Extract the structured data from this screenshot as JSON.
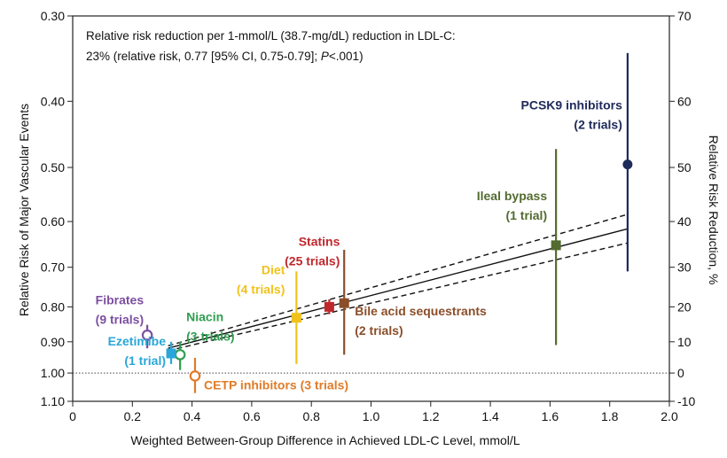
{
  "chart_data": {
    "type": "scatter",
    "title": "",
    "annotation_lines": [
      "Relative risk reduction per 1-mmol/L (38.7-mg/dL) reduction in LDL-C:",
      "23% (relative risk, 0.77 [95% CI, 0.75-0.79]; ",
      "P",
      "<.001)"
    ],
    "xlabel": "Weighted Between-Group Difference in Achieved LDL-C Level, mmol/L",
    "ylabel_left": "Relative Risk of Major Vascular Events",
    "ylabel_right": "Relative Risk Reduction, %",
    "xlim": [
      0,
      2.0
    ],
    "x_ticks": [
      "0",
      "0.2",
      "0.4",
      "0.6",
      "0.8",
      "1.0",
      "1.2",
      "1.4",
      "1.6",
      "1.8",
      "2.0"
    ],
    "y_left_ticks": [
      "0.30",
      "0.40",
      "0.50",
      "0.60",
      "0.70",
      "0.80",
      "0.90",
      "1.00",
      "1.10"
    ],
    "y_right_ticks": [
      "70",
      "60",
      "50",
      "40",
      "30",
      "20",
      "10",
      "0",
      "-10"
    ],
    "y_scale": "log",
    "ylim_relative_risk": [
      1.1,
      0.3
    ],
    "reference_line": {
      "relative_risk": 1.0,
      "style": "dotted"
    },
    "regression": {
      "relative_risk_per_mmol": 0.77,
      "ci_per_mmol": [
        0.75,
        0.79
      ],
      "x_range": [
        0.32,
        1.86
      ]
    },
    "series": [
      {
        "name": "Fibrates",
        "label_lines": [
          "Fibrates",
          "(9 trials)"
        ],
        "x": 0.25,
        "rr": 0.88,
        "ci": [
          0.85,
          0.92
        ],
        "marker": "circle-open",
        "color": "#7b4fa0"
      },
      {
        "name": "Niacin",
        "label_lines": [
          "Niacin",
          "(3 trials)"
        ],
        "x": 0.36,
        "rr": 0.94,
        "ci": [
          0.9,
          0.99
        ],
        "marker": "circle-open",
        "color": "#2f9e4f"
      },
      {
        "name": "Ezetimibe",
        "label_lines": [
          "Ezetimibe",
          "(1 trial)"
        ],
        "x": 0.33,
        "rr": 0.936,
        "ci": [
          0.9,
          0.97
        ],
        "marker": "square",
        "color": "#2aa6d8"
      },
      {
        "name": "CETP inhibitors",
        "label_lines": [
          "CETP inhibitors (3 trials)"
        ],
        "x": 0.41,
        "rr": 1.01,
        "ci": [
          0.95,
          1.07
        ],
        "marker": "circle-open",
        "color": "#e07b28"
      },
      {
        "name": "Diet",
        "label_lines": [
          "Diet",
          "(4 trials)"
        ],
        "x": 0.75,
        "rr": 0.83,
        "ci": [
          0.71,
          0.97
        ],
        "marker": "square",
        "color": "#f1c21b"
      },
      {
        "name": "Statins",
        "label_lines": [
          "Statins",
          "(25 trials)"
        ],
        "x": 0.86,
        "rr": 0.8,
        "ci": [
          0.78,
          0.82
        ],
        "marker": "square",
        "color": "#c0272d"
      },
      {
        "name": "Bile acid sequestrants",
        "label_lines": [
          "Bile acid sequestrants",
          "(2 trials)"
        ],
        "x": 0.91,
        "rr": 0.79,
        "ci": [
          0.66,
          0.94
        ],
        "marker": "square",
        "color": "#8a4e2a"
      },
      {
        "name": "Ileal bypass",
        "label_lines": [
          "Ileal bypass",
          "(1 trial)"
        ],
        "x": 1.62,
        "rr": 0.65,
        "ci": [
          0.47,
          0.91
        ],
        "marker": "square",
        "color": "#536b2f"
      },
      {
        "name": "PCSK9 inhibitors",
        "label_lines": [
          "PCSK9 inhibitors",
          "(2 trials)"
        ],
        "x": 1.86,
        "rr": 0.495,
        "ci": [
          0.34,
          0.71
        ],
        "marker": "circle",
        "color": "#1e2a5a"
      }
    ],
    "grid": false,
    "legend": "none"
  }
}
